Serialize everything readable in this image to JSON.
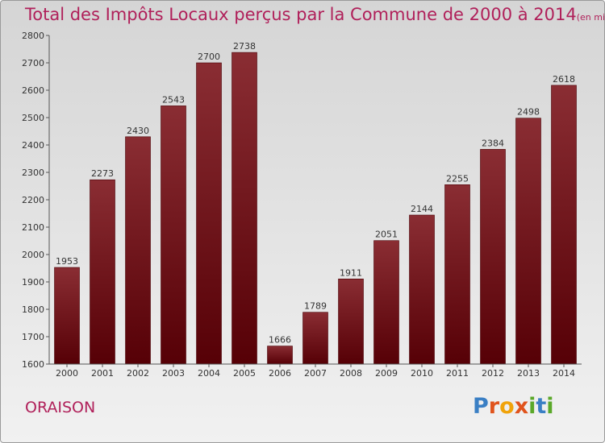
{
  "chart_data": {
    "type": "bar",
    "title": "Total des Impôts Locaux perçus par la Commune de 2000 à 2014",
    "subtitle": "(en milliers d'€)",
    "categories": [
      "2000",
      "2001",
      "2002",
      "2003",
      "2004",
      "2005",
      "2006",
      "2007",
      "2008",
      "2009",
      "2010",
      "2011",
      "2012",
      "2013",
      "2014"
    ],
    "values": [
      1953,
      2273,
      2430,
      2543,
      2700,
      2738,
      1666,
      1789,
      1911,
      2051,
      2144,
      2255,
      2384,
      2498,
      2618
    ],
    "ylim": [
      1600,
      2800
    ],
    "yticks": [
      1600,
      1700,
      1800,
      1900,
      2000,
      2100,
      2200,
      2300,
      2400,
      2500,
      2600,
      2700,
      2800
    ],
    "xlabel": "",
    "ylabel": "",
    "grid": false,
    "bar_color": "#7a1a22"
  },
  "commune": "ORAISON",
  "brand": {
    "letters": [
      "P",
      "r",
      "o",
      "x",
      "i",
      "t",
      "i"
    ],
    "colors": [
      "#3a7fc4",
      "#e0531c",
      "#f0a30a",
      "#e0531c",
      "#5aa829",
      "#3a7fc4",
      "#5aa829"
    ]
  }
}
